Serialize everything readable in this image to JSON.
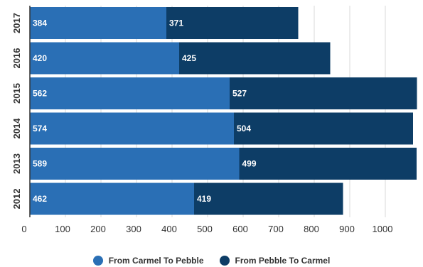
{
  "chart_data": {
    "type": "bar",
    "orientation": "horizontal",
    "stacked": true,
    "categories": [
      "2017",
      "2016",
      "2015",
      "2014",
      "2013",
      "2012"
    ],
    "series": [
      {
        "name": "From Carmel To Pebble",
        "values": [
          384,
          420,
          562,
          574,
          589,
          462
        ],
        "color": "#2a6fb5"
      },
      {
        "name": "From Pebble To Carmel",
        "values": [
          371,
          425,
          527,
          504,
          499,
          419
        ],
        "color": "#0d3d66"
      }
    ],
    "x_ticks": [
      0,
      100,
      200,
      300,
      400,
      500,
      600,
      700,
      800,
      900,
      1000
    ],
    "xlim": [
      0,
      1090
    ],
    "grid": true,
    "legend_position": "bottom"
  }
}
